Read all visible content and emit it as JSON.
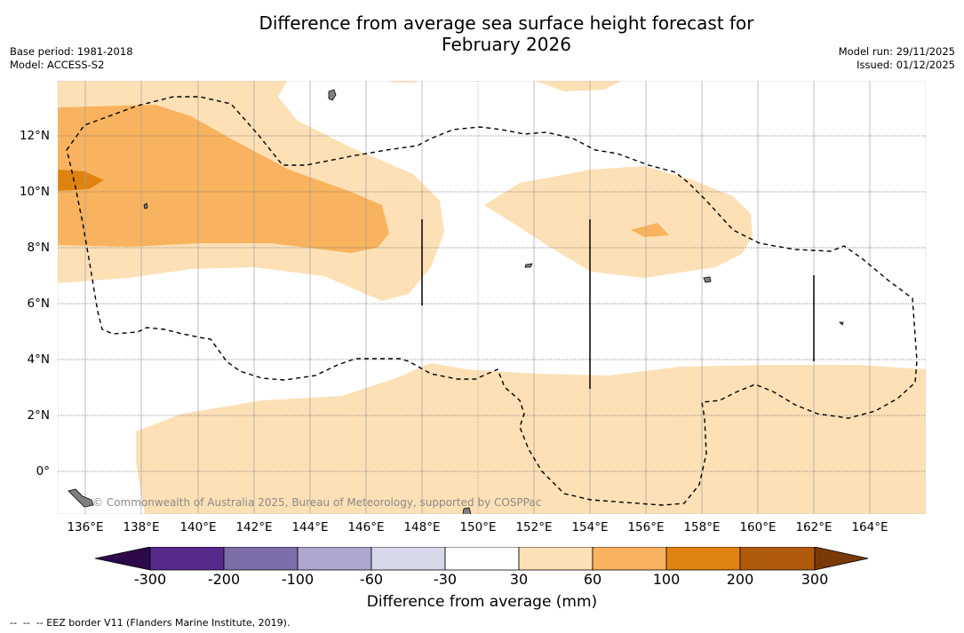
{
  "title_line1": "Difference from average sea surface height forecast for",
  "title_line2": "February 2026",
  "base_period": "Base period: 1981-2018",
  "model": "Model: ACCESS-S2",
  "model_run": "Model run: 29/11/2025",
  "issued": "Issued: 01/12/2025",
  "copyright": "© Commonwealth of Australia 2025, Bureau of Meteorology, supported by COSPPac",
  "lon_labels": [
    "136°E",
    "138°E",
    "140°E",
    "142°E",
    "144°E",
    "146°E",
    "148°E",
    "150°E",
    "152°E",
    "154°E",
    "156°E",
    "158°E",
    "160°E",
    "162°E",
    "164°E"
  ],
  "lat_labels": [
    "12°N",
    "10°N",
    "8°N",
    "6°N",
    "4°N",
    "2°N",
    "0°"
  ],
  "colorbar": {
    "label": "Difference from average (mm)",
    "ticks": [
      "-300",
      "-200",
      "-100",
      "-60",
      "-30",
      "30",
      "60",
      "100",
      "200",
      "300"
    ],
    "colors": [
      "#2c0a4a",
      "#562a8a",
      "#7d6eaa",
      "#afa7cf",
      "#d8d8eb",
      "#ffffff",
      "#fde0b6",
      "#f9b35e",
      "#e0820f",
      "#b05a0c",
      "#7a3a08"
    ]
  },
  "footnote": "--  --  -- EEZ border V11 (Flanders Marine Institute, 2019)."
}
